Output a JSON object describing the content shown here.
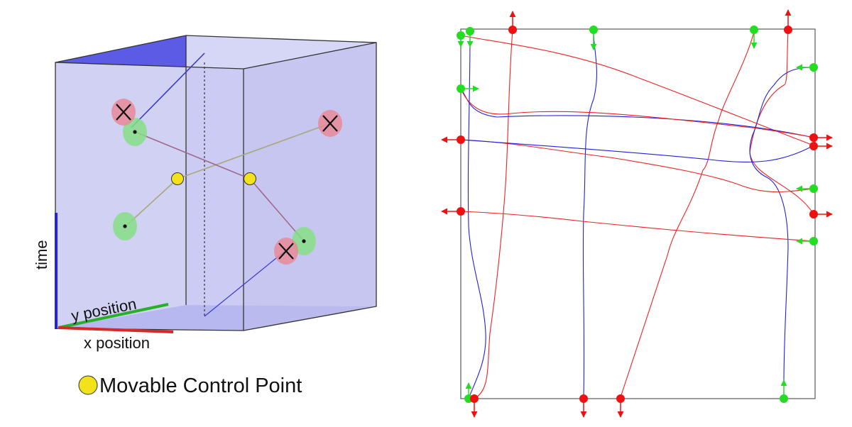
{
  "left_panel": {
    "axes": {
      "time": "time",
      "y": "y position",
      "x": "x position"
    },
    "legend": {
      "label": "Movable Control Point",
      "color": "#f2e21a"
    },
    "colors": {
      "cube_face": "#c9c9f2",
      "cube_top": "#5b5be6",
      "start_marker": "#86de86",
      "end_marker": "#e88a98",
      "control_point": "#f2e21a",
      "time_axis": "#2424d8",
      "y_axis": "#28b028",
      "x_axis": "#d82828"
    }
  },
  "right_panel": {
    "colors": {
      "start_point": "#22dd22",
      "end_point": "#ee1111",
      "path_a": "#ee2222",
      "path_b": "#2222dd",
      "boundary": "#555555"
    }
  }
}
